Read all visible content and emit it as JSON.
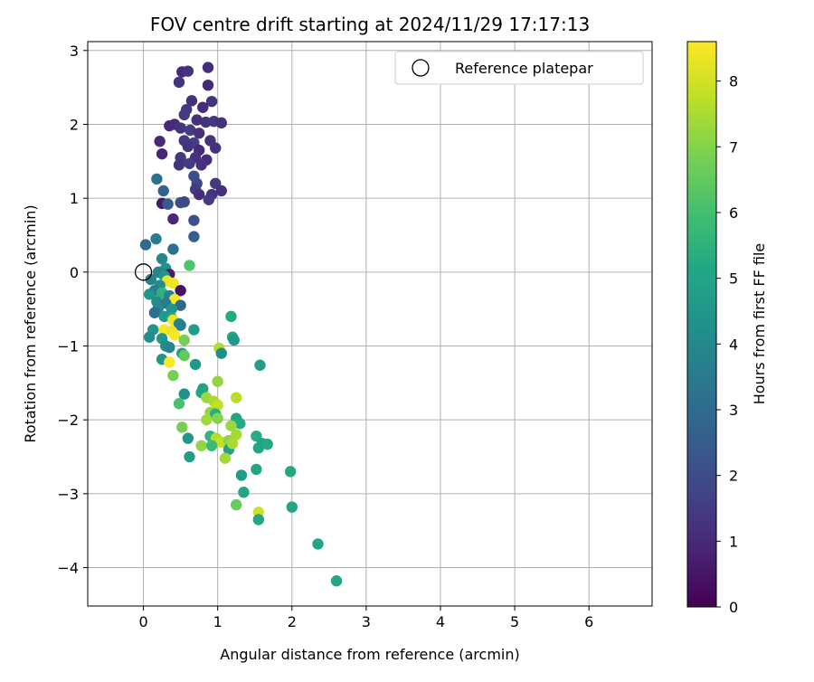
{
  "chart_data": {
    "type": "scatter",
    "title": "FOV centre drift starting at 2024/11/29 17:17:13",
    "xlabel": "Angular distance from reference (arcmin)",
    "ylabel": "Rotation from reference (arcmin)",
    "xlim": [
      -0.75,
      6.85
    ],
    "ylim": [
      -4.52,
      3.12
    ],
    "x_ticks": [
      0,
      1,
      2,
      3,
      4,
      5,
      6
    ],
    "y_ticks": [
      -4,
      -3,
      -2,
      -1,
      0,
      1,
      2,
      3
    ],
    "grid": true,
    "legend": {
      "position": "top-right",
      "entries": [
        "Reference platepar"
      ]
    },
    "reference_point": {
      "x": 0,
      "y": 0
    },
    "colorbar": {
      "label": "Hours from first FF file",
      "colormap": "viridis",
      "range": [
        0,
        8.6
      ],
      "ticks": [
        0,
        1,
        2,
        3,
        4,
        5,
        6,
        7,
        8
      ]
    },
    "points": [
      {
        "x": 0.52,
        "y": 2.71,
        "t": 1.0
      },
      {
        "x": 0.6,
        "y": 2.72,
        "t": 1.2
      },
      {
        "x": 0.87,
        "y": 2.77,
        "t": 1.1
      },
      {
        "x": 0.48,
        "y": 2.57,
        "t": 1.3
      },
      {
        "x": 0.87,
        "y": 2.53,
        "t": 1.0
      },
      {
        "x": 0.65,
        "y": 2.32,
        "t": 1.2
      },
      {
        "x": 0.92,
        "y": 2.31,
        "t": 1.3
      },
      {
        "x": 0.58,
        "y": 2.2,
        "t": 1.4
      },
      {
        "x": 0.8,
        "y": 2.23,
        "t": 1.1
      },
      {
        "x": 0.55,
        "y": 2.13,
        "t": 1.5
      },
      {
        "x": 0.72,
        "y": 2.06,
        "t": 1.2
      },
      {
        "x": 0.84,
        "y": 2.03,
        "t": 1.3
      },
      {
        "x": 0.95,
        "y": 2.04,
        "t": 1.4
      },
      {
        "x": 1.05,
        "y": 2.02,
        "t": 1.2
      },
      {
        "x": 0.35,
        "y": 1.98,
        "t": 1.0
      },
      {
        "x": 0.42,
        "y": 2.0,
        "t": 1.1
      },
      {
        "x": 0.5,
        "y": 1.95,
        "t": 1.3
      },
      {
        "x": 0.63,
        "y": 1.92,
        "t": 1.5
      },
      {
        "x": 0.75,
        "y": 1.88,
        "t": 1.2
      },
      {
        "x": 0.22,
        "y": 1.77,
        "t": 1.0
      },
      {
        "x": 0.55,
        "y": 1.78,
        "t": 1.4
      },
      {
        "x": 0.68,
        "y": 1.75,
        "t": 1.6
      },
      {
        "x": 0.9,
        "y": 1.78,
        "t": 1.3
      },
      {
        "x": 0.97,
        "y": 1.68,
        "t": 1.2
      },
      {
        "x": 0.6,
        "y": 1.7,
        "t": 1.3
      },
      {
        "x": 0.75,
        "y": 1.65,
        "t": 1.1
      },
      {
        "x": 0.25,
        "y": 1.6,
        "t": 0.9
      },
      {
        "x": 0.5,
        "y": 1.55,
        "t": 1.4
      },
      {
        "x": 0.7,
        "y": 1.55,
        "t": 1.2
      },
      {
        "x": 0.85,
        "y": 1.52,
        "t": 1.1
      },
      {
        "x": 0.48,
        "y": 1.45,
        "t": 1.3
      },
      {
        "x": 0.62,
        "y": 1.47,
        "t": 1.5
      },
      {
        "x": 0.78,
        "y": 1.45,
        "t": 1.2
      },
      {
        "x": 0.68,
        "y": 1.3,
        "t": 2.0
      },
      {
        "x": 0.72,
        "y": 1.2,
        "t": 1.9
      },
      {
        "x": 0.7,
        "y": 1.12,
        "t": 1.5
      },
      {
        "x": 0.97,
        "y": 1.2,
        "t": 1.4
      },
      {
        "x": 0.92,
        "y": 1.05,
        "t": 1.3
      },
      {
        "x": 1.05,
        "y": 1.1,
        "t": 1.2
      },
      {
        "x": 0.75,
        "y": 1.05,
        "t": 1.1
      },
      {
        "x": 0.88,
        "y": 0.98,
        "t": 1.5
      },
      {
        "x": 0.18,
        "y": 1.26,
        "t": 3.2
      },
      {
        "x": 0.27,
        "y": 1.1,
        "t": 2.7
      },
      {
        "x": 0.25,
        "y": 0.93,
        "t": 0.6
      },
      {
        "x": 0.33,
        "y": 0.92,
        "t": 2.4
      },
      {
        "x": 0.5,
        "y": 0.94,
        "t": 2.0
      },
      {
        "x": 0.55,
        "y": 0.95,
        "t": 1.9
      },
      {
        "x": 0.4,
        "y": 0.72,
        "t": 1.0
      },
      {
        "x": 0.68,
        "y": 0.7,
        "t": 2.1
      },
      {
        "x": 0.68,
        "y": 0.48,
        "t": 2.6
      },
      {
        "x": 0.17,
        "y": 0.45,
        "t": 3.6
      },
      {
        "x": 0.03,
        "y": 0.37,
        "t": 3.0
      },
      {
        "x": 0.4,
        "y": 0.31,
        "t": 3.2
      },
      {
        "x": 0.25,
        "y": 0.18,
        "t": 4.0
      },
      {
        "x": 0.62,
        "y": 0.09,
        "t": 6.2
      },
      {
        "x": 0.3,
        "y": 0.05,
        "t": 4.3
      },
      {
        "x": 0.2,
        "y": 0.0,
        "t": 3.9
      },
      {
        "x": 0.35,
        "y": -0.03,
        "t": 0.7
      },
      {
        "x": 0.1,
        "y": -0.1,
        "t": 3.8
      },
      {
        "x": 0.28,
        "y": -0.05,
        "t": 4.4
      },
      {
        "x": 0.32,
        "y": -0.12,
        "t": 8.3
      },
      {
        "x": 0.4,
        "y": -0.15,
        "t": 8.4
      },
      {
        "x": 0.22,
        "y": -0.18,
        "t": 4.1
      },
      {
        "x": 0.15,
        "y": -0.25,
        "t": 3.6
      },
      {
        "x": 0.5,
        "y": -0.25,
        "t": 0.4
      },
      {
        "x": 0.25,
        "y": -0.28,
        "t": 5.5
      },
      {
        "x": 0.08,
        "y": -0.3,
        "t": 4.5
      },
      {
        "x": 0.35,
        "y": -0.32,
        "t": 3.7
      },
      {
        "x": 0.42,
        "y": -0.37,
        "t": 8.5
      },
      {
        "x": 0.18,
        "y": -0.4,
        "t": 4.2
      },
      {
        "x": 0.3,
        "y": -0.42,
        "t": 3.5
      },
      {
        "x": 0.5,
        "y": -0.45,
        "t": 2.9
      },
      {
        "x": 0.2,
        "y": -0.48,
        "t": 4.0
      },
      {
        "x": 0.38,
        "y": -0.5,
        "t": 4.4
      },
      {
        "x": 0.15,
        "y": -0.55,
        "t": 3.1
      },
      {
        "x": 0.28,
        "y": -0.6,
        "t": 4.6
      },
      {
        "x": 0.38,
        "y": -0.62,
        "t": 5.2
      },
      {
        "x": 0.4,
        "y": -0.65,
        "t": 8.4
      },
      {
        "x": 0.48,
        "y": -0.7,
        "t": 4.3
      },
      {
        "x": 0.5,
        "y": -0.72,
        "t": 3.6
      },
      {
        "x": 0.68,
        "y": -0.78,
        "t": 4.7
      },
      {
        "x": 0.13,
        "y": -0.78,
        "t": 4.4
      },
      {
        "x": 0.28,
        "y": -0.78,
        "t": 8.5
      },
      {
        "x": 0.38,
        "y": -0.8,
        "t": 8.3
      },
      {
        "x": 0.42,
        "y": -0.85,
        "t": 8.5
      },
      {
        "x": 0.08,
        "y": -0.88,
        "t": 4.2
      },
      {
        "x": 0.25,
        "y": -0.9,
        "t": 4.5
      },
      {
        "x": 0.55,
        "y": -0.92,
        "t": 6.8
      },
      {
        "x": 1.18,
        "y": -0.6,
        "t": 5.2
      },
      {
        "x": 1.2,
        "y": -0.88,
        "t": 5.0
      },
      {
        "x": 1.22,
        "y": -0.92,
        "t": 4.6
      },
      {
        "x": 0.3,
        "y": -1.0,
        "t": 4.1
      },
      {
        "x": 0.35,
        "y": -1.02,
        "t": 3.9
      },
      {
        "x": 1.02,
        "y": -1.03,
        "t": 7.6
      },
      {
        "x": 0.52,
        "y": -1.1,
        "t": 4.8
      },
      {
        "x": 0.55,
        "y": -1.13,
        "t": 6.5
      },
      {
        "x": 1.05,
        "y": -1.1,
        "t": 4.2
      },
      {
        "x": 0.25,
        "y": -1.18,
        "t": 4.5
      },
      {
        "x": 0.35,
        "y": -1.22,
        "t": 8.6
      },
      {
        "x": 0.7,
        "y": -1.25,
        "t": 4.6
      },
      {
        "x": 1.57,
        "y": -1.26,
        "t": 4.8
      },
      {
        "x": 0.4,
        "y": -1.4,
        "t": 6.8
      },
      {
        "x": 1.0,
        "y": -1.48,
        "t": 7.2
      },
      {
        "x": 0.55,
        "y": -1.65,
        "t": 4.3
      },
      {
        "x": 0.8,
        "y": -1.58,
        "t": 4.9
      },
      {
        "x": 0.78,
        "y": -1.63,
        "t": 5.0
      },
      {
        "x": 0.85,
        "y": -1.7,
        "t": 7.3
      },
      {
        "x": 0.95,
        "y": -1.75,
        "t": 7.5
      },
      {
        "x": 1.25,
        "y": -1.7,
        "t": 7.7
      },
      {
        "x": 0.48,
        "y": -1.78,
        "t": 6.1
      },
      {
        "x": 1.0,
        "y": -1.8,
        "t": 7.8
      },
      {
        "x": 0.9,
        "y": -1.9,
        "t": 7.2
      },
      {
        "x": 0.97,
        "y": -1.92,
        "t": 5.4
      },
      {
        "x": 1.0,
        "y": -1.98,
        "t": 7.0
      },
      {
        "x": 0.85,
        "y": -2.0,
        "t": 7.4
      },
      {
        "x": 1.25,
        "y": -1.98,
        "t": 5.0
      },
      {
        "x": 1.3,
        "y": -2.05,
        "t": 5.2
      },
      {
        "x": 0.52,
        "y": -2.1,
        "t": 6.8
      },
      {
        "x": 1.18,
        "y": -2.08,
        "t": 7.3
      },
      {
        "x": 0.6,
        "y": -2.25,
        "t": 4.5
      },
      {
        "x": 0.9,
        "y": -2.22,
        "t": 5.6
      },
      {
        "x": 0.98,
        "y": -2.25,
        "t": 7.6
      },
      {
        "x": 1.05,
        "y": -2.3,
        "t": 7.8
      },
      {
        "x": 1.15,
        "y": -2.28,
        "t": 7.1
      },
      {
        "x": 1.25,
        "y": -2.2,
        "t": 7.4
      },
      {
        "x": 1.52,
        "y": -2.22,
        "t": 5.3
      },
      {
        "x": 0.78,
        "y": -2.35,
        "t": 7.2
      },
      {
        "x": 0.92,
        "y": -2.35,
        "t": 5.8
      },
      {
        "x": 1.15,
        "y": -2.4,
        "t": 4.9
      },
      {
        "x": 1.2,
        "y": -2.32,
        "t": 7.5
      },
      {
        "x": 1.55,
        "y": -2.38,
        "t": 5.1
      },
      {
        "x": 1.6,
        "y": -2.32,
        "t": 5.0
      },
      {
        "x": 1.67,
        "y": -2.33,
        "t": 5.2
      },
      {
        "x": 0.62,
        "y": -2.5,
        "t": 4.8
      },
      {
        "x": 1.1,
        "y": -2.52,
        "t": 7.4
      },
      {
        "x": 1.52,
        "y": -2.67,
        "t": 5.1
      },
      {
        "x": 1.98,
        "y": -2.7,
        "t": 5.2
      },
      {
        "x": 1.32,
        "y": -2.75,
        "t": 4.7
      },
      {
        "x": 1.35,
        "y": -2.98,
        "t": 5.0
      },
      {
        "x": 1.25,
        "y": -3.15,
        "t": 6.6
      },
      {
        "x": 2.0,
        "y": -3.18,
        "t": 5.0
      },
      {
        "x": 1.55,
        "y": -3.25,
        "t": 8.0
      },
      {
        "x": 1.55,
        "y": -3.35,
        "t": 5.1
      },
      {
        "x": 2.35,
        "y": -3.68,
        "t": 5.0
      },
      {
        "x": 2.6,
        "y": -4.18,
        "t": 5.1
      }
    ]
  }
}
